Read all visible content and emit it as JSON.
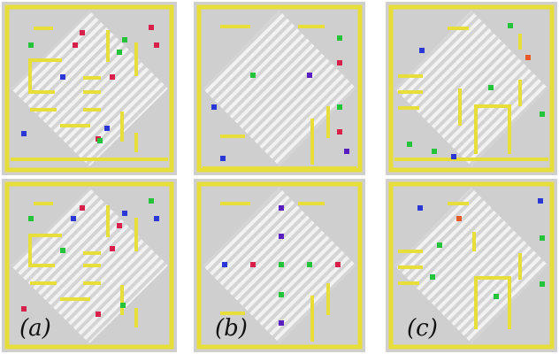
{
  "labels": {
    "a": "(a)",
    "b": "(b)",
    "c": "(c)"
  },
  "colors": {
    "red": "#d8204a",
    "green": "#23c43a",
    "blue": "#2a38d8",
    "purple": "#5a1fbf",
    "orange": "#e85a2a",
    "wall": "#e8de3a",
    "floor": "#d2d2d2",
    "hatch": "#f4f4f4"
  }
}
